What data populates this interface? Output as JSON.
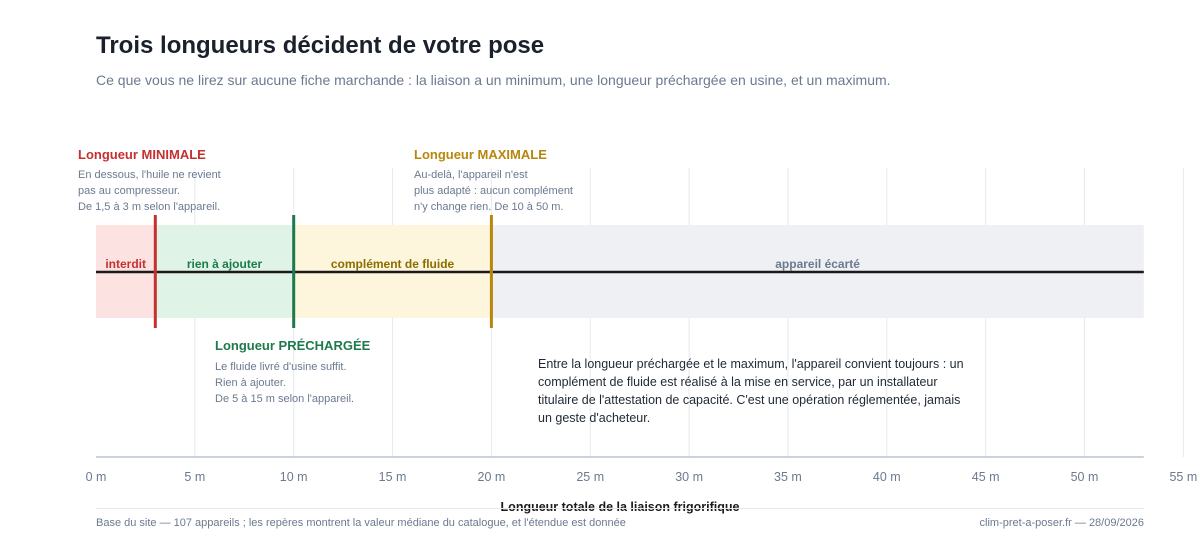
{
  "page": {
    "title": "Trois longueurs décident de votre pose",
    "subtitle": "Ce que vous ne lirez sur aucune fiche marchande : la liaison a un minimum, une longueur préchargée en usine, et un maximum."
  },
  "markers": {
    "min": {
      "title": "Longueur MINIMALE",
      "color": "#c53030",
      "lines": [
        "En dessous, l'huile ne revient",
        "pas au compresseur.",
        "De 1,5 à 3 m selon l'appareil."
      ]
    },
    "max": {
      "title": "Longueur MAXIMALE",
      "color": "#b7860b",
      "lines": [
        "Au-delà, l'appareil n'est",
        "plus adapté : aucun complément",
        "n'y change rien. De 10 à 50 m."
      ]
    },
    "pre": {
      "title": "Longueur PRÉCHARGÉE",
      "color": "#1e7a4c",
      "lines": [
        "Le fluide livré d'usine suffit.",
        "Rien à ajouter.",
        "De 5 à 15 m selon l'appareil."
      ]
    }
  },
  "note": "Entre la longueur préchargée et le maximum, l'appareil convient toujours : un complément de fluide est réalisé à la mise en service, par un installateur titulaire de l'attestation de capacité. C'est une opération réglementée, jamais un geste d'acheteur.",
  "footer": {
    "left": "Base du site — 107 appareils ; les repères montrent la valeur médiane du catalogue, et l'étendue est donnée",
    "right": "clim-pret-a-poser.fr — 28/09/2026"
  },
  "chart_data": {
    "type": "bar",
    "xlabel": "Longueur totale de la liaison frigorifique",
    "xlim": [
      0,
      53
    ],
    "ticks": [
      0,
      5,
      10,
      15,
      20,
      25,
      30,
      35,
      40,
      45,
      50,
      55
    ],
    "tick_labels": [
      "0 m",
      "5 m",
      "10 m",
      "15 m",
      "20 m",
      "25 m",
      "30 m",
      "35 m",
      "40 m",
      "45 m",
      "50 m",
      "55 m"
    ],
    "zones": [
      {
        "label": "interdit",
        "from": 0,
        "to": 3,
        "fill": "#fde2e2",
        "text_color": "#c53030"
      },
      {
        "label": "rien à ajouter",
        "from": 3,
        "to": 10,
        "fill": "#dff4e6",
        "text_color": "#1e7a4c"
      },
      {
        "label": "complément de fluide",
        "from": 10,
        "to": 20,
        "fill": "#fef6dc",
        "text_color": "#8a6d00"
      },
      {
        "label": "appareil écarté",
        "from": 20,
        "to": 53,
        "fill": "#eef0f4",
        "text_color": "#6b7a8f"
      }
    ],
    "markers": [
      {
        "name": "minimale",
        "value": 3,
        "color": "#c53030"
      },
      {
        "name": "préchargée",
        "value": 10,
        "color": "#1e7a4c"
      },
      {
        "name": "maximale",
        "value": 20,
        "color": "#b7860b"
      }
    ],
    "grid": true,
    "grid_color": "#e5e9ef",
    "axis_color": "#9aa5b4",
    "line_color": "#1a1a1a"
  }
}
